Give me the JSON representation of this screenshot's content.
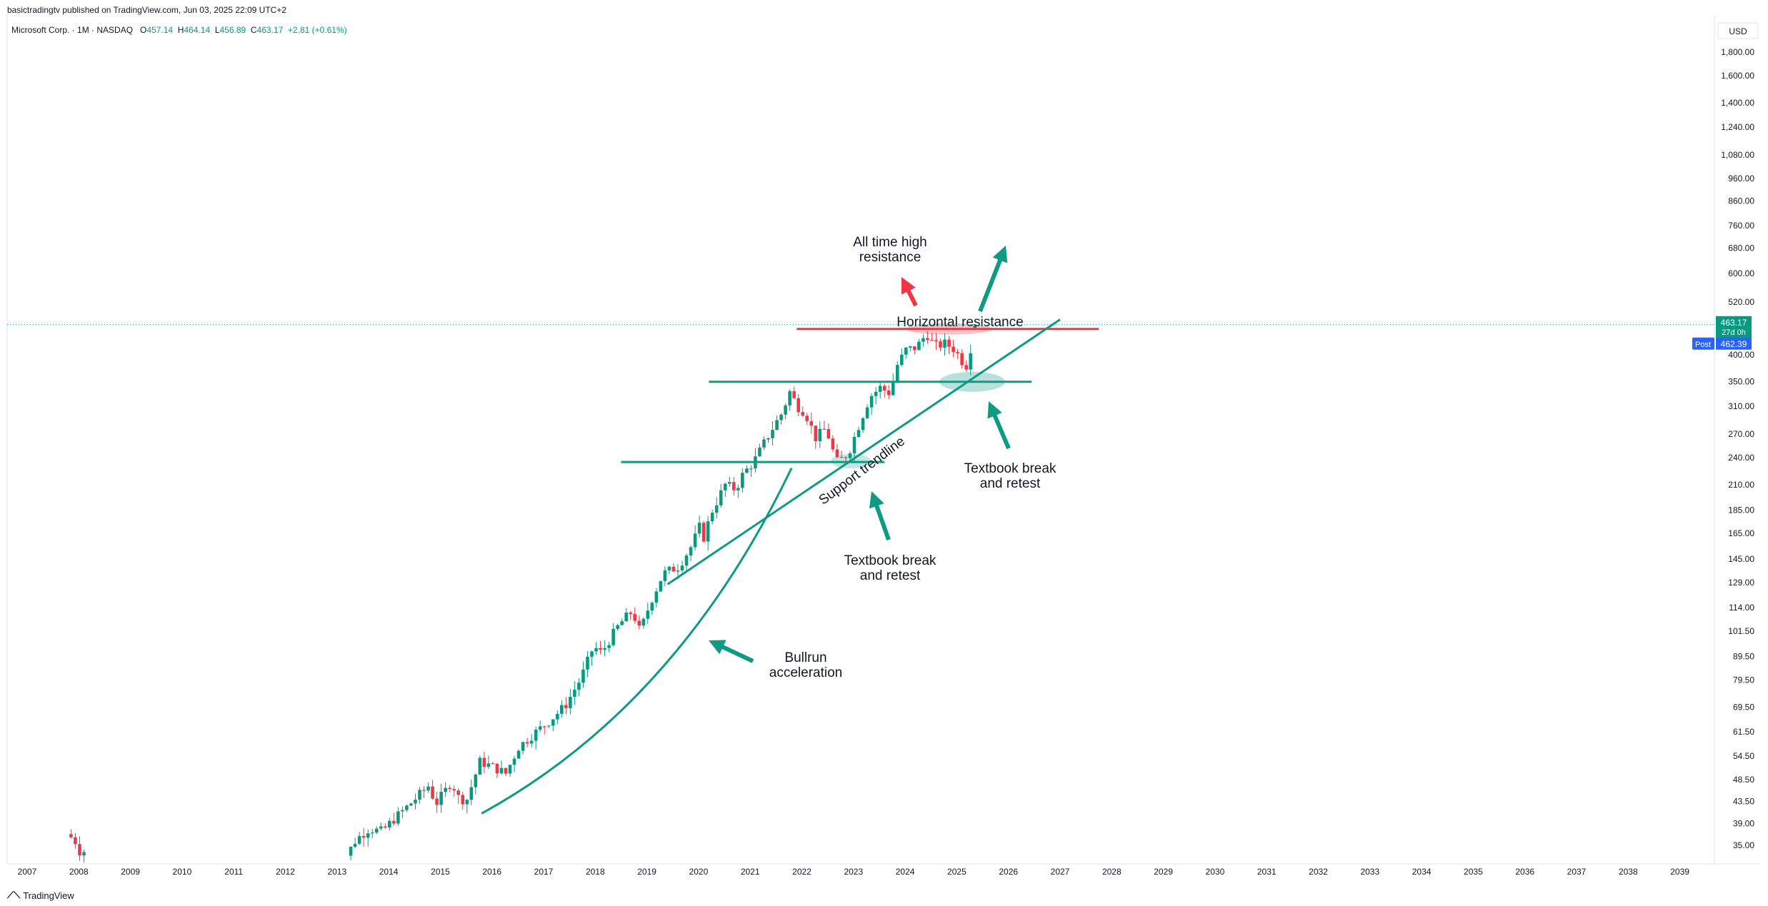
{
  "header": {
    "publisher_line": "basictradingtv published on TradingView.com, Jun 03, 2025 22:09 UTC+2"
  },
  "legend": {
    "symbol": "Microsoft Corp. · 1M · NASDAQ",
    "open_label": "O",
    "open": "457.14",
    "high_label": "H",
    "high": "464.14",
    "low_label": "L",
    "low": "456.89",
    "close_label": "C",
    "close": "463.17",
    "change": "+2.81 (+0.61%)"
  },
  "price_axis": {
    "currency": "USD",
    "last_price": "463.17",
    "countdown": "27d 0h",
    "post_label": "Post",
    "post_price": "462.39",
    "ticks": [
      "1,800.00",
      "1,600.00",
      "1,400.00",
      "1,240.00",
      "1,080.00",
      "960.00",
      "860.00",
      "760.00",
      "680.00",
      "600.00",
      "520.00",
      "400.00",
      "350.00",
      "310.00",
      "270.00",
      "240.00",
      "210.00",
      "185.00",
      "165.00",
      "145.00",
      "129.00",
      "114.00",
      "101.50",
      "89.50",
      "79.50",
      "69.50",
      "61.50",
      "54.50",
      "48.50",
      "43.50",
      "39.00",
      "35.00"
    ]
  },
  "colors": {
    "up": "#089981",
    "down": "#f23645",
    "annotation_green": "#0f9a83",
    "annotation_red": "#f23645",
    "axis_blue": "#2962ff"
  },
  "annotations": {
    "ath": "All time high\nresistance",
    "horizontal": "Horizontal resistance",
    "support": "Support trendline",
    "retest_right": "Textbook break\nand retest",
    "retest_left": "Textbook break\nand retest",
    "bullrun": "Bullrun\nacceleration"
  },
  "footer": {
    "brand": "TradingView"
  },
  "chart_data": {
    "type": "candlestick",
    "title": "Microsoft Corp. · 1M · NASDAQ",
    "scale": "log",
    "ylim": [
      33,
      2000
    ],
    "xlim": [
      2007,
      2039.6
    ],
    "x_ticks": [
      "2007",
      "2008",
      "2009",
      "2010",
      "2011",
      "2012",
      "2013",
      "2014",
      "2015",
      "2016",
      "2017",
      "2018",
      "2019",
      "2020",
      "2021",
      "2022",
      "2023",
      "2024",
      "2025",
      "2026",
      "2027",
      "2028",
      "2029",
      "2030",
      "2031",
      "2032",
      "2033",
      "2034",
      "2035",
      "2036",
      "2037",
      "2038",
      "2039"
    ],
    "y_ticks": [
      1800,
      1600,
      1400,
      1240,
      1080,
      960,
      860,
      760,
      680,
      600,
      520,
      400,
      350,
      310,
      270,
      240,
      210,
      185,
      165,
      145,
      129,
      114,
      101.5,
      89.5,
      79.5,
      69.5,
      61.5,
      54.5,
      48.5,
      43.5,
      39,
      35
    ],
    "grid": false,
    "last": {
      "open": 457.14,
      "high": 464.14,
      "low": 456.89,
      "close": 463.17
    },
    "path": [
      [
        2007.85,
        37
      ],
      [
        2008.0,
        36
      ],
      [
        2008.1,
        34
      ],
      [
        2013.25,
        33
      ],
      [
        2013.45,
        36
      ],
      [
        2013.7,
        38
      ],
      [
        2013.95,
        37.5
      ],
      [
        2014.2,
        40
      ],
      [
        2014.5,
        43
      ],
      [
        2014.85,
        47
      ],
      [
        2015.0,
        43
      ],
      [
        2015.3,
        48
      ],
      [
        2015.45,
        44
      ],
      [
        2015.6,
        44
      ],
      [
        2015.85,
        53
      ],
      [
        2016.05,
        52
      ],
      [
        2016.35,
        50
      ],
      [
        2016.6,
        57
      ],
      [
        2016.9,
        61
      ],
      [
        2017.2,
        65
      ],
      [
        2017.5,
        70
      ],
      [
        2017.8,
        80
      ],
      [
        2018.05,
        94
      ],
      [
        2018.2,
        91
      ],
      [
        2018.55,
        105
      ],
      [
        2018.8,
        112
      ],
      [
        2018.95,
        101
      ],
      [
        2019.15,
        117
      ],
      [
        2019.4,
        135
      ],
      [
        2019.7,
        140
      ],
      [
        2019.95,
        155
      ],
      [
        2020.1,
        170
      ],
      [
        2020.2,
        160
      ],
      [
        2020.3,
        180
      ],
      [
        2020.6,
        210
      ],
      [
        2020.8,
        205
      ],
      [
        2020.95,
        222
      ],
      [
        2021.15,
        235
      ],
      [
        2021.45,
        270
      ],
      [
        2021.7,
        300
      ],
      [
        2021.85,
        333
      ],
      [
        2022.0,
        310
      ],
      [
        2022.15,
        300
      ],
      [
        2022.35,
        265
      ],
      [
        2022.55,
        278
      ],
      [
        2022.75,
        235
      ],
      [
        2022.9,
        240
      ],
      [
        2023.0,
        248
      ],
      [
        2023.15,
        275
      ],
      [
        2023.4,
        325
      ],
      [
        2023.6,
        340
      ],
      [
        2023.8,
        330
      ],
      [
        2023.9,
        375
      ],
      [
        2024.1,
        410
      ],
      [
        2024.3,
        415
      ],
      [
        2024.5,
        445
      ],
      [
        2024.65,
        417
      ],
      [
        2024.85,
        423
      ],
      [
        2025.0,
        415
      ],
      [
        2025.15,
        395
      ],
      [
        2025.25,
        375
      ],
      [
        2025.32,
        395
      ],
      [
        2025.42,
        460
      ]
    ],
    "drawings": [
      {
        "kind": "hline",
        "label": "Horizontal resistance",
        "y": 455,
        "x1": 2021.9,
        "x2": 2027.75,
        "color": "#f23645"
      },
      {
        "kind": "hline",
        "label": "",
        "y": 350,
        "x1": 2020.2,
        "x2": 2026.45,
        "color": "#0f9a83"
      },
      {
        "kind": "hline",
        "label": "",
        "y": 235,
        "x1": 2018.5,
        "x2": 2023.6,
        "color": "#0f9a83"
      },
      {
        "kind": "trendline",
        "label": "Support trendline",
        "x1": 2019.4,
        "y1": 128,
        "x2": 2027.0,
        "y2": 477
      },
      {
        "kind": "curve",
        "label": "Bullrun acceleration"
      }
    ]
  }
}
